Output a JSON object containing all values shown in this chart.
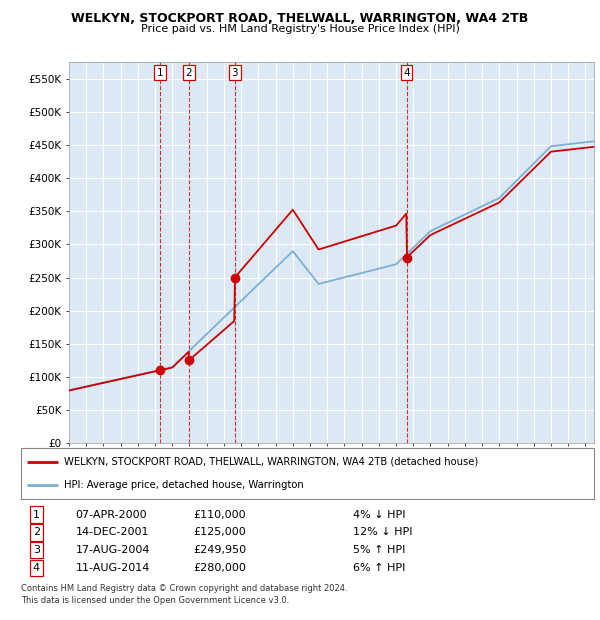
{
  "title": "WELKYN, STOCKPORT ROAD, THELWALL, WARRINGTON, WA4 2TB",
  "subtitle": "Price paid vs. HM Land Registry's House Price Index (HPI)",
  "ylim": [
    0,
    575000
  ],
  "yticks": [
    0,
    50000,
    100000,
    150000,
    200000,
    250000,
    300000,
    350000,
    400000,
    450000,
    500000,
    550000
  ],
  "ytick_labels": [
    "£0",
    "£50K",
    "£100K",
    "£150K",
    "£200K",
    "£250K",
    "£300K",
    "£350K",
    "£400K",
    "£450K",
    "£500K",
    "£550K"
  ],
  "xmin": 1995.0,
  "xmax": 2025.5,
  "sale_dates": [
    2000.27,
    2001.96,
    2004.63,
    2014.61
  ],
  "sale_prices": [
    110000,
    125000,
    249950,
    280000
  ],
  "sale_labels": [
    "1",
    "2",
    "3",
    "4"
  ],
  "vline_dates": [
    2000.27,
    2001.96,
    2004.63,
    2014.61
  ],
  "line_color_red": "#cc0000",
  "line_color_blue": "#7ab0d4",
  "background_color": "#ffffff",
  "plot_bg_color": "#dce9f5",
  "grid_color": "#ffffff",
  "legend_entries": [
    "WELKYN, STOCKPORT ROAD, THELWALL, WARRINGTON, WA4 2TB (detached house)",
    "HPI: Average price, detached house, Warrington"
  ],
  "table_data": [
    [
      "1",
      "07-APR-2000",
      "£110,000",
      "4% ↓ HPI"
    ],
    [
      "2",
      "14-DEC-2001",
      "£125,000",
      "12% ↓ HPI"
    ],
    [
      "3",
      "17-AUG-2004",
      "£249,950",
      "5% ↑ HPI"
    ],
    [
      "4",
      "11-AUG-2014",
      "£280,000",
      "6% ↑ HPI"
    ]
  ],
  "footer": "Contains HM Land Registry data © Crown copyright and database right 2024.\nThis data is licensed under the Open Government Licence v3.0."
}
